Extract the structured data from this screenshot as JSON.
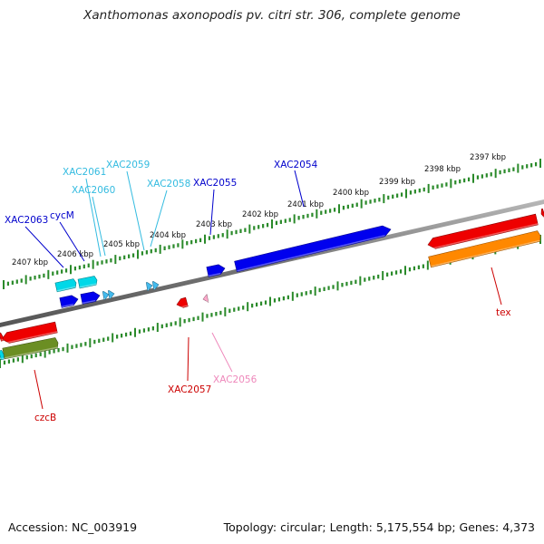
{
  "header": {
    "title": "Xanthomonas axonopodis pv. citri str. 306, complete genome"
  },
  "footer": {
    "accession": "Accession: NC_003919",
    "summary": "Topology: circular; Length: 5,175,554 bp; Genes: 4,373"
  },
  "colors": {
    "backbone": "#777777",
    "tick": "#2a8a2a",
    "label_navy": "#0000cc",
    "label_cyan": "#33bbe0",
    "label_red": "#cc0000",
    "label_pink": "#ee88bb",
    "gene_blue": "#0000ee",
    "gene_cyan": "#00d8e8",
    "gene_red": "#ee0000",
    "gene_orange": "#ff8800",
    "gene_olive": "#6b8e23",
    "gene_lightblue": "#44bbee",
    "gene_pink": "#ffaacc"
  },
  "scale": {
    "kbp_labels": [
      "2397 kbp",
      "2398 kbp",
      "2399 kbp",
      "2400 kbp",
      "2401 kbp",
      "2402 kbp",
      "2403 kbp",
      "2404 kbp",
      "2405 kbp",
      "2406 kbp",
      "2407 kbp"
    ]
  },
  "genes": [
    {
      "label": "XAC2054",
      "color": "label_navy"
    },
    {
      "label": "XAC2055",
      "color": "label_navy"
    },
    {
      "label": "XAC2058",
      "color": "label_cyan"
    },
    {
      "label": "XAC2059",
      "color": "label_cyan"
    },
    {
      "label": "XAC2060",
      "color": "label_cyan"
    },
    {
      "label": "XAC2061",
      "color": "label_cyan"
    },
    {
      "label": "cycM",
      "color": "label_navy"
    },
    {
      "label": "XAC2063",
      "color": "label_navy"
    },
    {
      "label": "XAC2057",
      "color": "label_red"
    },
    {
      "label": "XAC2056",
      "color": "label_pink"
    },
    {
      "label": "tex",
      "color": "label_red"
    },
    {
      "label": "czcB",
      "color": "label_red"
    }
  ]
}
